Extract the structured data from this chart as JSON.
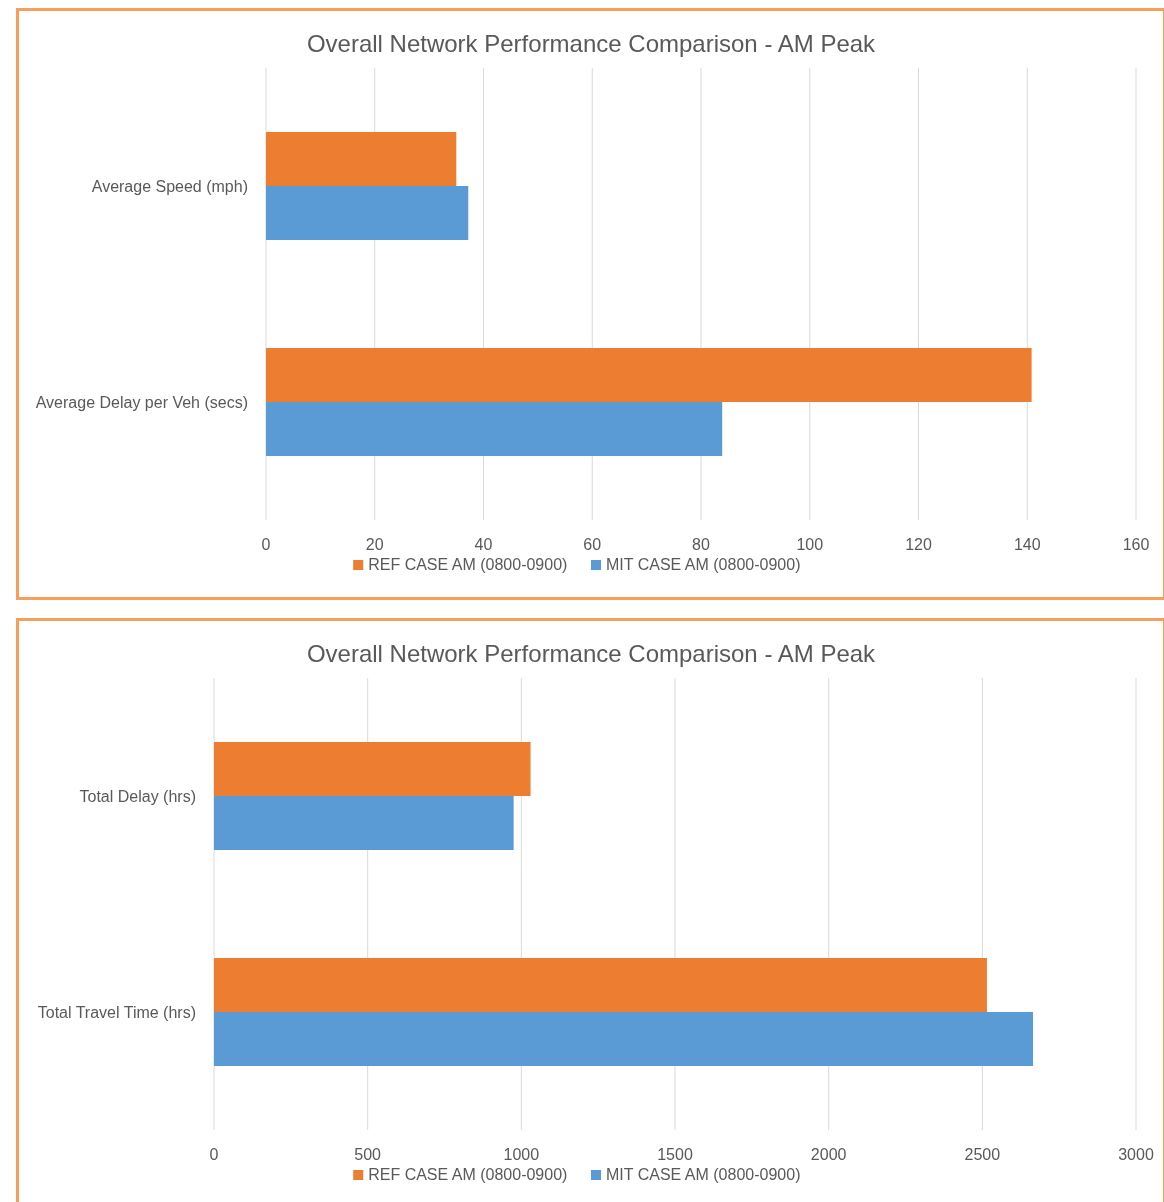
{
  "chart_data": [
    {
      "type": "bar",
      "orientation": "horizontal",
      "title": "Overall Network Performance  Comparison - AM Peak",
      "categories": [
        "Average Speed (mph)",
        "Average Delay  per Veh (secs)"
      ],
      "series": [
        {
          "name": "REF CASE AM (0800-0900)",
          "color": "#ed7d31",
          "values": [
            35,
            140.8
          ]
        },
        {
          "name": "MIT CASE AM (0800-0900)",
          "color": "#5b9bd5",
          "values": [
            37.2,
            83.9
          ]
        }
      ],
      "xlim": [
        0,
        160
      ],
      "xticks": [
        0,
        20,
        40,
        60,
        80,
        100,
        120,
        140,
        160
      ],
      "grid": "x",
      "legend": "bottom"
    },
    {
      "type": "bar",
      "orientation": "horizontal",
      "title": "Overall Network Performance  Comparison - AM Peak",
      "categories": [
        "Total Delay (hrs)",
        "Total Travel Time (hrs)"
      ],
      "series": [
        {
          "name": "REF CASE AM (0800-0900)",
          "color": "#ed7d31",
          "values": [
            1030,
            2515
          ]
        },
        {
          "name": "MIT CASE AM (0800-0900)",
          "color": "#5b9bd5",
          "values": [
            975,
            2665
          ]
        }
      ],
      "xlim": [
        0,
        3000
      ],
      "xticks": [
        0,
        500,
        1000,
        1500,
        2000,
        2500,
        3000
      ],
      "grid": "x",
      "legend": "bottom"
    }
  ]
}
